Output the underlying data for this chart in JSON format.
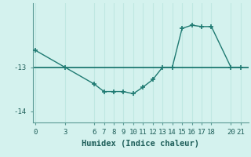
{
  "xlabel": "Humidex (Indice chaleur)",
  "x_data": [
    0,
    3,
    6,
    7,
    8,
    9,
    10,
    11,
    12,
    13,
    14,
    15,
    16,
    17,
    18,
    20,
    21
  ],
  "y_data": [
    -12.62,
    -13.0,
    -13.38,
    -13.55,
    -13.55,
    -13.55,
    -13.6,
    -13.45,
    -13.28,
    -13.0,
    -13.0,
    -12.12,
    -12.05,
    -12.08,
    -12.08,
    -13.0,
    -13.0
  ],
  "ref_line_y": -13.0,
  "ylim": [
    -14.25,
    -11.55
  ],
  "yticks": [
    -14,
    -13
  ],
  "xlim": [
    -0.3,
    21.8
  ],
  "xticks": [
    0,
    3,
    6,
    7,
    8,
    9,
    10,
    11,
    12,
    13,
    14,
    15,
    16,
    17,
    18,
    20,
    21
  ],
  "line_color": "#1f7a72",
  "ref_line_color": "#1f7a72",
  "bg_color": "#d4f2ee",
  "grid_color": "#c0e8e2",
  "marker": "+",
  "marker_size": 5,
  "line_width": 1.0,
  "font_color": "#1f5f5a",
  "tick_font_size": 6.5,
  "xlabel_font_size": 7.5
}
